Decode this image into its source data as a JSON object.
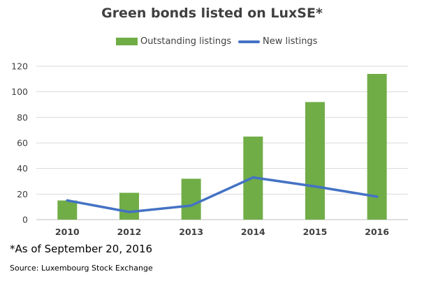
{
  "chart_data": {
    "type": "bar",
    "title": "Green bonds  listed on LuxSE*",
    "categories": [
      "2010",
      "2012",
      "2013",
      "2014",
      "2015",
      "2016"
    ],
    "series": [
      {
        "name": "Outstanding listings",
        "kind": "bar",
        "color": "#70ad47",
        "values": [
          15,
          21,
          32,
          65,
          92,
          114
        ]
      },
      {
        "name": "New listings",
        "kind": "line",
        "color": "#4472c4",
        "values": [
          15,
          6,
          11,
          33,
          26,
          18
        ]
      }
    ],
    "y_ticks": [
      0,
      20,
      40,
      60,
      80,
      100,
      120
    ],
    "ylim": [
      0,
      120
    ],
    "grid": true,
    "legend_position": "top"
  },
  "footnote": "*As of September 20, 2016",
  "source": "Source: Luxembourg Stock Exchange"
}
